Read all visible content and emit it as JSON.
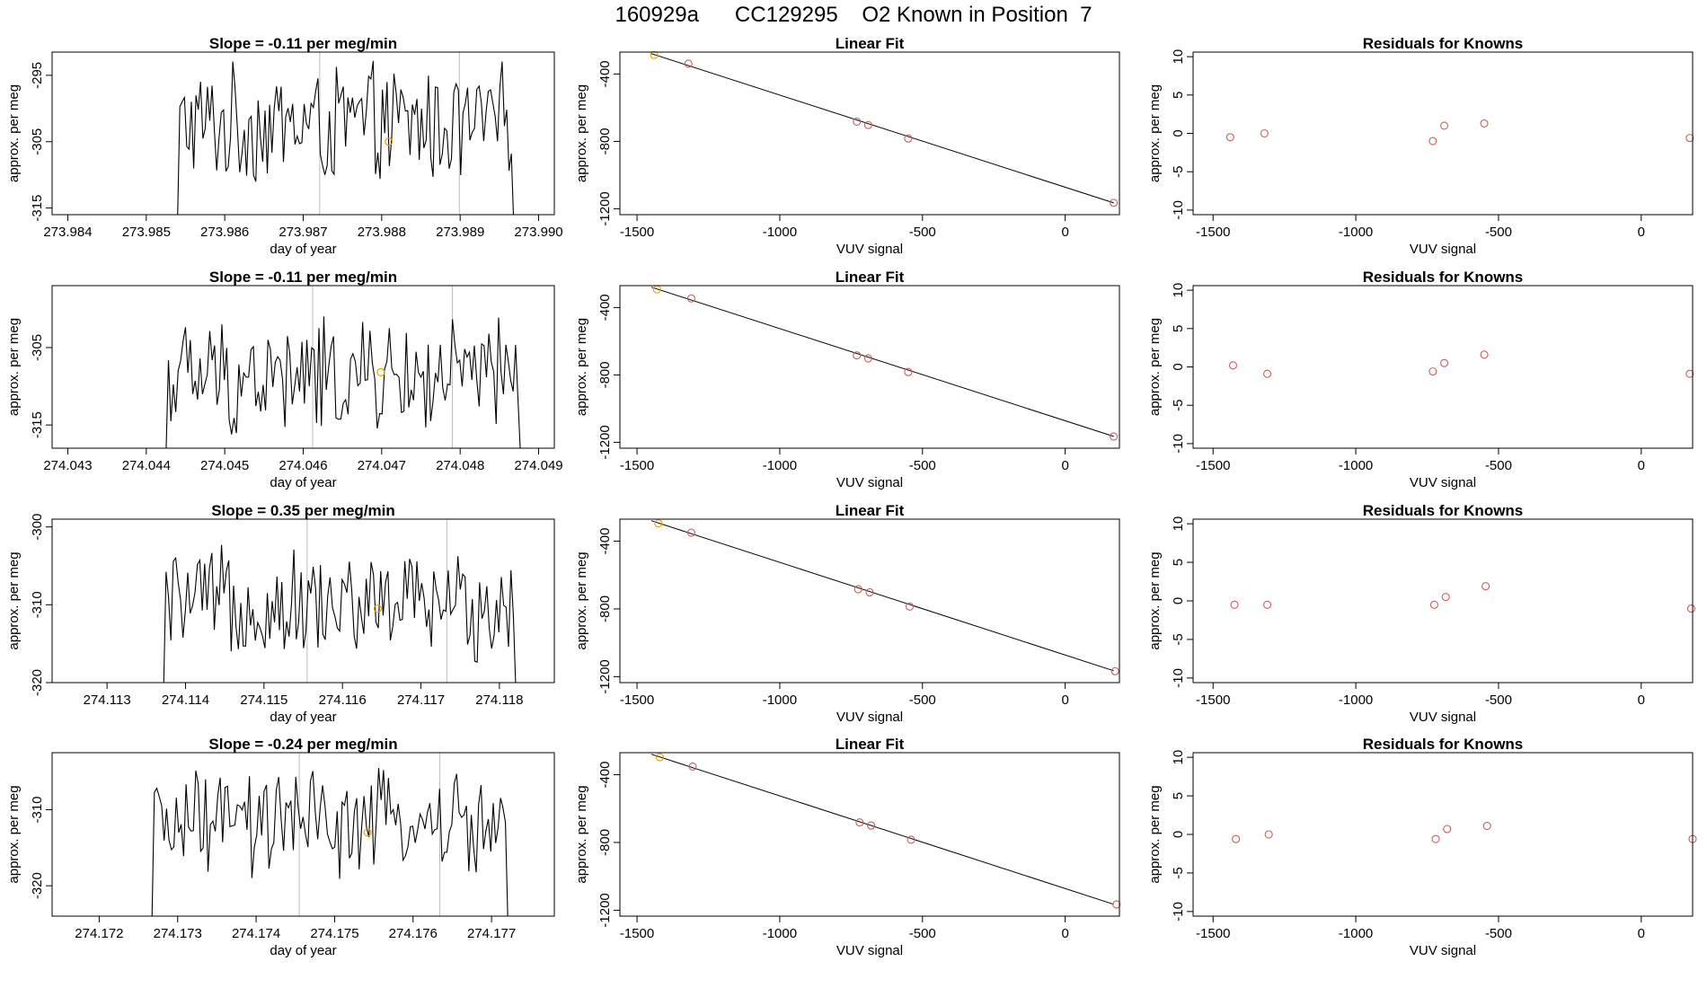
{
  "figure_title": "160929a      CC129295    O2 Known in Position  7",
  "colors": {
    "trace": "#000000",
    "vline": "#bebebe",
    "known": "#e69f00",
    "resid": "#cd5c5c",
    "fitline": "#000000"
  },
  "chart_data": [
    {
      "type": "line",
      "panel": "timeseries",
      "row": 0,
      "title": "Slope =  -0.11  per meg/min",
      "xlabel": "day of year",
      "ylabel": "approx. per meg",
      "xlim": [
        273.9838,
        273.9902
      ],
      "ylim": [
        -316,
        -291.5
      ],
      "xticks": [
        "273.984",
        "273.985",
        "273.986",
        "273.987",
        "273.988",
        "273.989",
        "273.990"
      ],
      "yticks": [
        "-295",
        "-305",
        "-315"
      ],
      "vlines": [
        273.98721,
        273.98899
      ],
      "series_start": 273.98534,
      "series_end": 273.98974,
      "series_center": -302.5,
      "series_amp": 10,
      "known_point": {
        "x": 273.98809,
        "y": -305
      }
    },
    {
      "type": "line",
      "panel": "timeseries",
      "row": 1,
      "title": "Slope =  -0.11  per meg/min",
      "xlabel": "day of year",
      "ylabel": "approx. per meg",
      "xlim": [
        274.0428,
        274.0492
      ],
      "ylim": [
        -318,
        -297
      ],
      "xticks": [
        "274.043",
        "274.044",
        "274.045",
        "274.046",
        "274.047",
        "274.048",
        "274.049"
      ],
      "yticks": [
        "-305",
        "-315"
      ],
      "vlines": [
        274.04612,
        274.0479
      ],
      "series_start": 274.04419,
      "series_end": 274.04883,
      "series_center": -309,
      "series_amp": 8.5,
      "known_point": {
        "x": 274.04699,
        "y": -308.2
      }
    },
    {
      "type": "line",
      "panel": "timeseries",
      "row": 2,
      "title": "Slope =  0.35  per meg/min",
      "xlabel": "day of year",
      "ylabel": "approx. per meg",
      "xlim": [
        274.1123,
        274.1187
      ],
      "ylim": [
        -320,
        -299
      ],
      "xticks": [
        "274.113",
        "274.114",
        "274.115",
        "274.116",
        "274.117",
        "274.118"
      ],
      "yticks": [
        "-300",
        "-310",
        "-320"
      ],
      "vlines": [
        274.11555,
        274.11733
      ],
      "series_start": 274.11366,
      "series_end": 274.11827,
      "series_center": -310,
      "series_amp": 8,
      "known_point": {
        "x": 274.11645,
        "y": -310.5
      }
    },
    {
      "type": "line",
      "panel": "timeseries",
      "row": 3,
      "title": "Slope =  -0.24  per meg/min",
      "xlabel": "day of year",
      "ylabel": "approx. per meg",
      "xlim": [
        274.1714,
        274.1778
      ],
      "ylim": [
        -324,
        -302.5
      ],
      "xticks": [
        "274.172",
        "274.173",
        "274.174",
        "274.175",
        "274.176",
        "274.177"
      ],
      "yticks": [
        "-310",
        "-320"
      ],
      "vlines": [
        274.17455,
        274.17634
      ],
      "series_start": 274.17261,
      "series_end": 274.17727,
      "series_center": -312,
      "series_amp": 8,
      "known_point": {
        "x": 274.17542,
        "y": -313
      }
    },
    {
      "type": "scatter",
      "panel": "fit",
      "row": 0,
      "title": "Linear Fit",
      "xlabel": "VUV signal",
      "ylabel": "approx. per meg",
      "xlim": [
        -1560,
        190
      ],
      "ylim": [
        -1235,
        -270
      ],
      "xticks": [
        -1500,
        -1000,
        -500,
        0
      ],
      "yticks": [
        -400,
        -800,
        -1200
      ],
      "fit_line": [
        [
          -1450,
          -279
        ],
        [
          170,
          -1165
        ]
      ],
      "points": [
        [
          -1440,
          -287
        ],
        [
          -1320,
          -339
        ],
        [
          -730,
          -683
        ],
        [
          -690,
          -703
        ],
        [
          -550,
          -783
        ],
        [
          170,
          -1165
        ]
      ],
      "known_index": 0
    },
    {
      "type": "scatter",
      "panel": "fit",
      "row": 1,
      "title": "Linear Fit",
      "xlabel": "VUV signal",
      "ylabel": "approx. per meg",
      "xlim": [
        -1560,
        190
      ],
      "ylim": [
        -1235,
        -270
      ],
      "xticks": [
        -1500,
        -1000,
        -500,
        0
      ],
      "yticks": [
        -400,
        -800,
        -1200
      ],
      "fit_line": [
        [
          -1450,
          -279
        ],
        [
          170,
          -1165
        ]
      ],
      "points": [
        [
          -1430,
          -292
        ],
        [
          -1310,
          -346
        ],
        [
          -730,
          -684
        ],
        [
          -690,
          -702
        ],
        [
          -550,
          -783
        ],
        [
          170,
          -1166
        ]
      ],
      "known_index": 0
    },
    {
      "type": "scatter",
      "panel": "fit",
      "row": 2,
      "title": "Linear Fit",
      "xlabel": "VUV signal",
      "ylabel": "approx. per meg",
      "xlim": [
        -1560,
        190
      ],
      "ylim": [
        -1235,
        -270
      ],
      "xticks": [
        -1500,
        -1000,
        -500,
        0
      ],
      "yticks": [
        -400,
        -800,
        -1200
      ],
      "fit_line": [
        [
          -1450,
          -279
        ],
        [
          170,
          -1165
        ]
      ],
      "points": [
        [
          -1425,
          -295
        ],
        [
          -1310,
          -350
        ],
        [
          -725,
          -684
        ],
        [
          -685,
          -702
        ],
        [
          -545,
          -786
        ],
        [
          175,
          -1168
        ]
      ],
      "known_index": 0
    },
    {
      "type": "scatter",
      "panel": "fit",
      "row": 3,
      "title": "Linear Fit",
      "xlabel": "VUV signal",
      "ylabel": "approx. per meg",
      "xlim": [
        -1560,
        190
      ],
      "ylim": [
        -1235,
        -270
      ],
      "xticks": [
        -1500,
        -1000,
        -500,
        0
      ],
      "yticks": [
        -400,
        -800,
        -1200
      ],
      "fit_line": [
        [
          -1450,
          -279
        ],
        [
          170,
          -1165
        ]
      ],
      "points": [
        [
          -1420,
          -297
        ],
        [
          -1305,
          -352
        ],
        [
          -720,
          -682
        ],
        [
          -680,
          -700
        ],
        [
          -540,
          -784
        ],
        [
          180,
          -1166
        ]
      ],
      "known_index": 0
    },
    {
      "type": "scatter",
      "panel": "resid",
      "row": 0,
      "title": "Residuals for Knowns",
      "xlabel": "VUV signal",
      "ylabel": "approx. per meg",
      "xlim": [
        -1570,
        180
      ],
      "ylim": [
        -10.6,
        10.6
      ],
      "xticks": [
        -1500,
        -1000,
        -500,
        0
      ],
      "yticks": [
        10,
        5,
        0,
        -5,
        -10
      ],
      "points": [
        [
          -1440,
          -0.5
        ],
        [
          -1320,
          0.0
        ],
        [
          -730,
          -1.0
        ],
        [
          -690,
          1.0
        ],
        [
          -550,
          1.3
        ],
        [
          170,
          -0.6
        ]
      ]
    },
    {
      "type": "scatter",
      "panel": "resid",
      "row": 1,
      "title": "Residuals for Knowns",
      "xlabel": "VUV signal",
      "ylabel": "approx. per meg",
      "xlim": [
        -1570,
        180
      ],
      "ylim": [
        -10.6,
        10.6
      ],
      "xticks": [
        -1500,
        -1000,
        -500,
        0
      ],
      "yticks": [
        10,
        5,
        0,
        -5,
        -10
      ],
      "points": [
        [
          -1430,
          0.2
        ],
        [
          -1310,
          -0.9
        ],
        [
          -730,
          -0.6
        ],
        [
          -690,
          0.5
        ],
        [
          -550,
          1.6
        ],
        [
          170,
          -0.9
        ]
      ]
    },
    {
      "type": "scatter",
      "panel": "resid",
      "row": 2,
      "title": "Residuals for Knowns",
      "xlabel": "VUV signal",
      "ylabel": "approx. per meg",
      "xlim": [
        -1570,
        180
      ],
      "ylim": [
        -10.6,
        10.6
      ],
      "xticks": [
        -1500,
        -1000,
        -500,
        0
      ],
      "yticks": [
        10,
        5,
        0,
        -5,
        -10
      ],
      "points": [
        [
          -1425,
          -0.5
        ],
        [
          -1310,
          -0.5
        ],
        [
          -725,
          -0.5
        ],
        [
          -685,
          0.5
        ],
        [
          -545,
          1.9
        ],
        [
          175,
          -1.0
        ]
      ]
    },
    {
      "type": "scatter",
      "panel": "resid",
      "row": 3,
      "title": "Residuals for Knowns",
      "xlabel": "VUV signal",
      "ylabel": "approx. per meg",
      "xlim": [
        -1570,
        180
      ],
      "ylim": [
        -10.6,
        10.6
      ],
      "xticks": [
        -1500,
        -1000,
        -500,
        0
      ],
      "yticks": [
        10,
        5,
        0,
        -5,
        -10
      ],
      "points": [
        [
          -1420,
          -0.6
        ],
        [
          -1305,
          0.0
        ],
        [
          -720,
          -0.6
        ],
        [
          -680,
          0.7
        ],
        [
          -540,
          1.1
        ],
        [
          180,
          -0.6
        ]
      ]
    }
  ]
}
